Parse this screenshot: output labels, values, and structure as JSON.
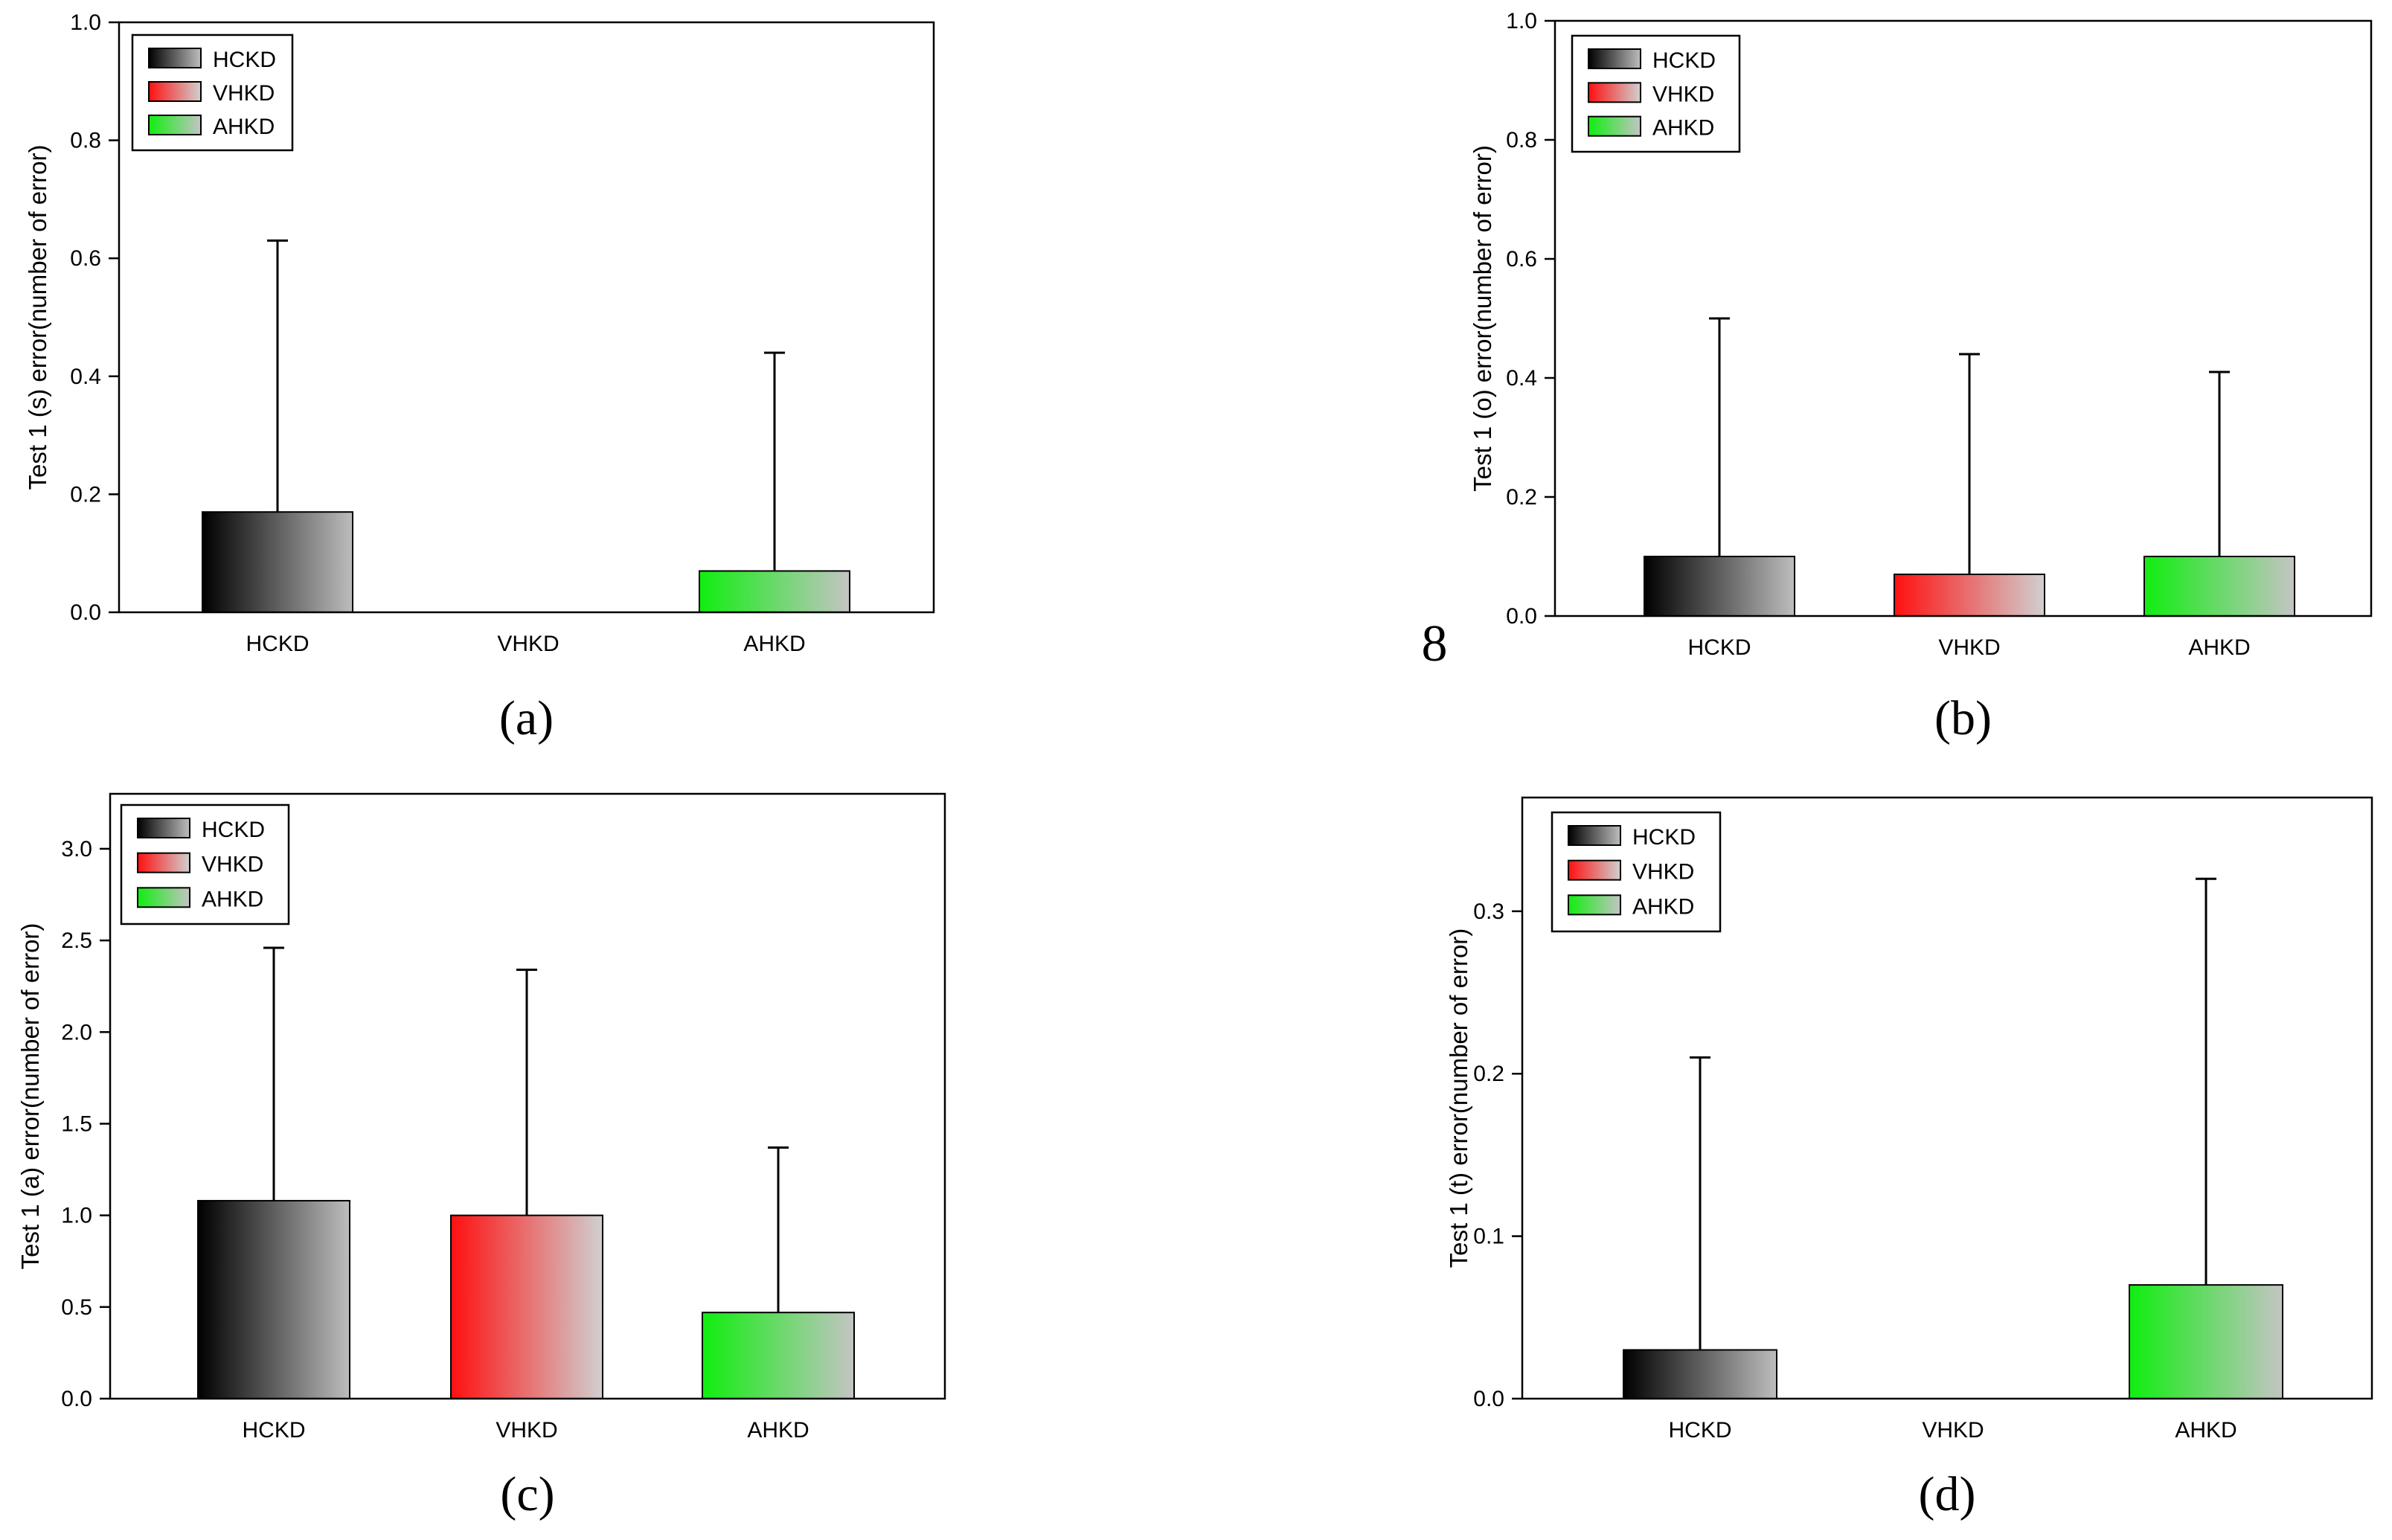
{
  "page_number": "8",
  "colors": {
    "HCKD": [
      "#000000",
      "#bdbdbd"
    ],
    "VHKD": [
      "#ff1010",
      "#d0d0d0"
    ],
    "AHKD": [
      "#10ee10",
      "#c4c4c4"
    ]
  },
  "chart_data": [
    {
      "type": "bar",
      "panel_label": "(a)",
      "categories": [
        "HCKD",
        "VHKD",
        "AHKD"
      ],
      "values": [
        0.17,
        0.0,
        0.07
      ],
      "error_upper": [
        0.63,
        0.0,
        0.44
      ],
      "ylabel": "Test 1 (s) error(number of error)",
      "xlabel": "",
      "ylim": [
        0,
        1.0
      ],
      "yticks": [
        "0.0",
        "0.2",
        "0.4",
        "0.6",
        "0.8",
        "1.0"
      ],
      "ytick_values": [
        0,
        0.2,
        0.4,
        0.6,
        0.8,
        1.0
      ],
      "legend": [
        "HCKD",
        "VHKD",
        "AHKD"
      ],
      "legend_position": "top-left"
    },
    {
      "type": "bar",
      "panel_label": "(b)",
      "categories": [
        "HCKD",
        "VHKD",
        "AHKD"
      ],
      "values": [
        0.1,
        0.07,
        0.1
      ],
      "error_upper": [
        0.5,
        0.44,
        0.41
      ],
      "ylabel": "Test 1 (o) error(number of error)",
      "xlabel": "",
      "ylim": [
        0,
        1.0
      ],
      "yticks": [
        "0.0",
        "0.2",
        "0.4",
        "0.6",
        "0.8",
        "1.0"
      ],
      "ytick_values": [
        0,
        0.2,
        0.4,
        0.6,
        0.8,
        1.0
      ],
      "legend": [
        "HCKD",
        "VHKD",
        "AHKD"
      ],
      "legend_position": "top-left"
    },
    {
      "type": "bar",
      "panel_label": "(c)",
      "categories": [
        "HCKD",
        "VHKD",
        "AHKD"
      ],
      "values": [
        1.08,
        1.0,
        0.47
      ],
      "error_upper": [
        2.46,
        2.34,
        1.37
      ],
      "ylabel": "Test 1 (a) error(number of error)",
      "xlabel": "",
      "ylim": [
        0,
        3.3
      ],
      "yticks": [
        "0.0",
        "0.5",
        "1.0",
        "1.5",
        "2.0",
        "2.5",
        "3.0"
      ],
      "ytick_values": [
        0,
        0.5,
        1.0,
        1.5,
        2.0,
        2.5,
        3.0
      ],
      "legend": [
        "HCKD",
        "VHKD",
        "AHKD"
      ],
      "legend_position": "top-left"
    },
    {
      "type": "bar",
      "panel_label": "(d)",
      "categories": [
        "HCKD",
        "VHKD",
        "AHKD"
      ],
      "values": [
        0.03,
        0.0,
        0.07
      ],
      "error_upper": [
        0.21,
        0.0,
        0.32
      ],
      "ylabel": "Test 1 (t) error(number of error)",
      "xlabel": "",
      "ylim": [
        0,
        0.37
      ],
      "yticks": [
        "0.0",
        "0.1",
        "0.2",
        "0.3"
      ],
      "ytick_values": [
        0,
        0.1,
        0.2,
        0.3
      ],
      "legend": [
        "HCKD",
        "VHKD",
        "AHKD"
      ],
      "legend_position": "top-left"
    }
  ]
}
